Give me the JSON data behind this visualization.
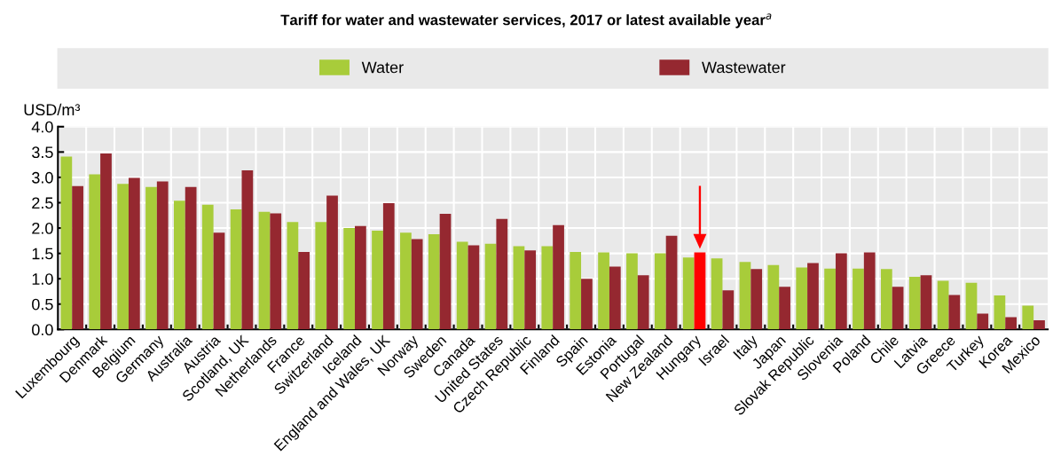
{
  "chart_data": {
    "type": "bar",
    "title": "Tariff for water and wastewater services, 2017 or latest available year$^{a}$",
    "ylabel": "USD/m³",
    "categories": [
      "Luxembourg",
      "Denmark",
      "Belgium",
      "Germany",
      "Australia",
      "Austria",
      "Scotland, UK",
      "Netherlands",
      "France",
      "Switzerland",
      "Iceland",
      "England and Wales, UK",
      "Norway",
      "Sweden",
      "Canada",
      "United States",
      "Czech Republic",
      "Finland",
      "Spain",
      "Estonia",
      "Portugal",
      "New Zealand",
      "Hungary",
      "Israel",
      "Italy",
      "Japan",
      "Slovak Republic",
      "Slovenia",
      "Poland",
      "Chile",
      "Latvia",
      "Greece",
      "Turkey",
      "Korea",
      "Mexico"
    ],
    "series": [
      {
        "name": "Water",
        "color": "#a8cc3a",
        "values": [
          3.41,
          3.06,
          2.87,
          2.81,
          2.54,
          2.46,
          2.37,
          2.32,
          2.12,
          2.12,
          2.0,
          1.95,
          1.91,
          1.88,
          1.73,
          1.69,
          1.64,
          1.64,
          1.53,
          1.52,
          1.5,
          1.5,
          1.42,
          1.4,
          1.33,
          1.27,
          1.22,
          1.2,
          1.2,
          1.19,
          1.04,
          0.96,
          0.92,
          0.67,
          0.47
        ]
      },
      {
        "name": "Wastewater",
        "color": "#952830",
        "colors": [
          "#952830",
          "#952830",
          "#952830",
          "#952830",
          "#952830",
          "#952830",
          "#952830",
          "#952830",
          "#952830",
          "#952830",
          "#952830",
          "#952830",
          "#952830",
          "#952830",
          "#952830",
          "#952830",
          "#952830",
          "#952830",
          "#952830",
          "#952830",
          "#952830",
          "#952830",
          "#ff0000",
          "#952830",
          "#952830",
          "#952830",
          "#952830",
          "#952830",
          "#952830",
          "#952830",
          "#952830",
          "#952830",
          "#952830",
          "#952830",
          "#952830"
        ],
        "values": [
          2.83,
          3.47,
          2.99,
          2.92,
          2.81,
          1.91,
          3.14,
          2.29,
          1.53,
          2.64,
          2.04,
          2.49,
          1.78,
          2.28,
          1.66,
          2.18,
          1.56,
          2.06,
          1.0,
          1.24,
          1.07,
          1.85,
          1.52,
          0.77,
          1.19,
          0.84,
          1.31,
          1.5,
          1.52,
          0.84,
          1.07,
          0.68,
          0.31,
          0.24,
          0.18
        ]
      }
    ],
    "ylim": [
      0,
      4.0
    ],
    "yticks": [
      {
        "value": 0,
        "label": "0.0"
      },
      0.5,
      {
        "value": 1,
        "label": "1.0"
      },
      1.5,
      {
        "value": 2,
        "label": "2.0"
      },
      2.5,
      {
        "value": 3,
        "label": "3.0"
      },
      3.5,
      {
        "value": 4,
        "label": "4.0"
      }
    ],
    "grid": true,
    "legend": "top"
  }
}
